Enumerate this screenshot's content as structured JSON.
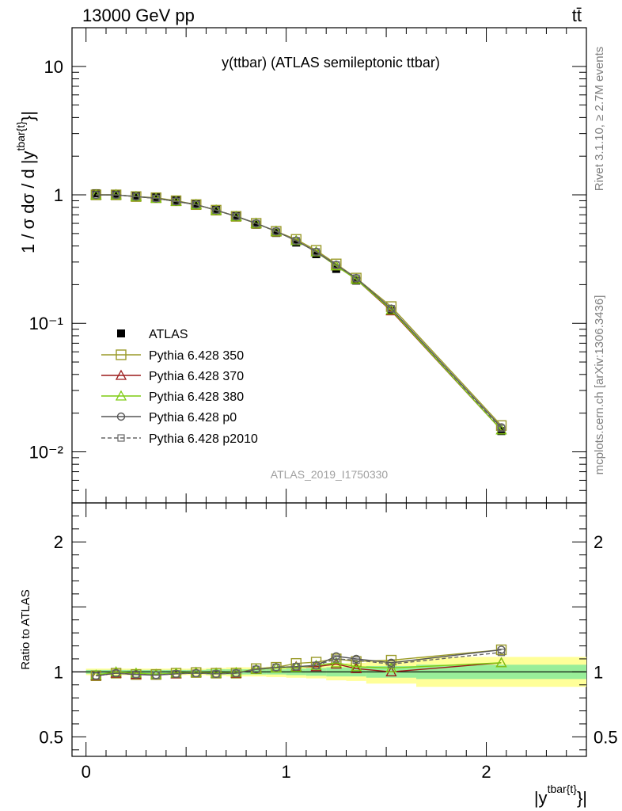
{
  "header": {
    "left": "13000 GeV pp",
    "right": "tt̄"
  },
  "side_labels": {
    "rivet": "Rivet 3.1.10, ≥ 2.7M events",
    "source": "mcplots.cern.ch [arXiv:1306.3436]"
  },
  "chart_data": [
    {
      "type": "line",
      "title": "y(ttbar) (ATLAS semileptonic ttbar)",
      "watermark": "ATLAS_2019_I1750330",
      "ylabel": "1 / σ dσ / d |y^{tbar{t}}|",
      "ylabel_main": "1 / σ dσ / d |y",
      "ylabel_sup": "tbar{t}",
      "ylabel_close": "}|",
      "yscale": "log",
      "ylim": [
        0.004,
        20
      ],
      "xlim": [
        -0.07,
        2.5
      ],
      "x": [
        0.05,
        0.15,
        0.25,
        0.35,
        0.45,
        0.55,
        0.65,
        0.75,
        0.85,
        0.95,
        1.05,
        1.15,
        1.25,
        1.35,
        1.525,
        2.075
      ],
      "x_edges": [
        0,
        0.1,
        0.2,
        0.3,
        0.4,
        0.5,
        0.6,
        0.7,
        0.8,
        0.9,
        1.0,
        1.1,
        1.2,
        1.3,
        1.4,
        1.65,
        2.5
      ],
      "y_ticks": [
        {
          "v": 10,
          "label": "10"
        },
        {
          "v": 1,
          "label": "1"
        },
        {
          "v": 0.1,
          "label": "10⁻¹"
        },
        {
          "v": 0.01,
          "label": "10⁻²"
        }
      ],
      "legend_position": "bottom-left",
      "series": [
        {
          "name": "ATLAS",
          "color": "#000000",
          "marker": "filled-square",
          "values": [
            1.03,
            1.01,
            0.99,
            0.96,
            0.905,
            0.845,
            0.765,
            0.685,
            0.585,
            0.505,
            0.425,
            0.345,
            0.265,
            0.215,
            0.125,
            0.0145
          ]
        },
        {
          "name": "Pythia 6.428 350",
          "color": "#9a9a28",
          "marker": "open-square",
          "dash": false,
          "values": [
            1.0,
            1.0,
            0.97,
            0.95,
            0.9,
            0.84,
            0.76,
            0.68,
            0.6,
            0.52,
            0.45,
            0.37,
            0.29,
            0.225,
            0.135,
            0.016
          ]
        },
        {
          "name": "Pythia 6.428 370",
          "color": "#9b1a1a",
          "marker": "open-triangle",
          "dash": false,
          "values": [
            1.0,
            1.0,
            0.97,
            0.94,
            0.89,
            0.84,
            0.76,
            0.68,
            0.6,
            0.52,
            0.44,
            0.36,
            0.28,
            0.22,
            0.125,
            0.0148
          ]
        },
        {
          "name": "Pythia 6.428 380",
          "color": "#7ecc10",
          "marker": "open-triangle",
          "dash": false,
          "values": [
            1.0,
            1.0,
            0.97,
            0.94,
            0.89,
            0.84,
            0.76,
            0.68,
            0.6,
            0.52,
            0.44,
            0.36,
            0.28,
            0.22,
            0.127,
            0.0148
          ]
        },
        {
          "name": "Pythia 6.428 p0",
          "color": "#555555",
          "marker": "open-circle",
          "dash": false,
          "values": [
            1.0,
            1.0,
            0.97,
            0.94,
            0.89,
            0.84,
            0.76,
            0.68,
            0.6,
            0.52,
            0.44,
            0.36,
            0.285,
            0.225,
            0.13,
            0.0155
          ]
        },
        {
          "name": "Pythia 6.428 p2010",
          "color": "#666666",
          "marker": "open-square-small",
          "dash": true,
          "values": [
            1.0,
            1.0,
            0.97,
            0.94,
            0.89,
            0.84,
            0.76,
            0.68,
            0.6,
            0.52,
            0.44,
            0.36,
            0.285,
            0.225,
            0.13,
            0.0152
          ]
        }
      ]
    },
    {
      "type": "line",
      "ylabel": "Ratio to ATLAS",
      "xlabel": "|y^{tbar{t}}|",
      "xlabel_main": "|y",
      "xlabel_sup": "tbar{t}",
      "xlabel_close": "}|",
      "ylim": [
        0.35,
        2.3
      ],
      "xlim": [
        -0.07,
        2.5
      ],
      "x": [
        0.05,
        0.15,
        0.25,
        0.35,
        0.45,
        0.55,
        0.65,
        0.75,
        0.85,
        0.95,
        1.05,
        1.15,
        1.25,
        1.35,
        1.525,
        2.075
      ],
      "x_edges": [
        0,
        0.1,
        0.2,
        0.3,
        0.4,
        0.5,
        0.6,
        0.7,
        0.8,
        0.9,
        1.0,
        1.1,
        1.2,
        1.3,
        1.4,
        1.65,
        2.5
      ],
      "y_ticks": [
        {
          "v": 2,
          "label": "2"
        },
        {
          "v": 1,
          "label": "1"
        },
        {
          "v": 0.5,
          "label": "0.5"
        }
      ],
      "x_ticks": [
        {
          "v": 0,
          "label": "0"
        },
        {
          "v": 1,
          "label": "1"
        },
        {
          "v": 2,
          "label": "2"
        }
      ],
      "band_stat": [
        0.015,
        0.015,
        0.015,
        0.015,
        0.015,
        0.015,
        0.02,
        0.02,
        0.02,
        0.02,
        0.025,
        0.03,
        0.035,
        0.035,
        0.045,
        0.055
      ],
      "band_total": [
        0.025,
        0.025,
        0.025,
        0.025,
        0.025,
        0.025,
        0.03,
        0.035,
        0.035,
        0.04,
        0.045,
        0.05,
        0.065,
        0.07,
        0.09,
        0.115
      ],
      "series": [
        {
          "name": "Pythia 6.428 350",
          "color": "#9a9a28",
          "marker": "open-square",
          "dash": false,
          "values": [
            0.97,
            0.99,
            0.98,
            0.98,
            0.99,
            0.995,
            0.99,
            0.99,
            1.025,
            1.035,
            1.065,
            1.075,
            1.1,
            1.08,
            1.09,
            1.17
          ]
        },
        {
          "name": "Pythia 6.428 370",
          "color": "#9b1a1a",
          "marker": "open-triangle",
          "dash": false,
          "values": [
            0.97,
            0.99,
            0.98,
            0.98,
            0.985,
            0.995,
            0.99,
            0.99,
            1.02,
            1.03,
            1.04,
            1.04,
            1.06,
            1.025,
            1.0,
            1.07
          ]
        },
        {
          "name": "Pythia 6.428 380",
          "color": "#7ecc10",
          "marker": "open-triangle",
          "dash": false,
          "values": [
            0.975,
            1.0,
            0.99,
            0.98,
            0.99,
            0.995,
            0.99,
            0.995,
            1.02,
            1.03,
            1.035,
            1.05,
            1.07,
            1.04,
            1.03,
            1.07
          ]
        },
        {
          "name": "Pythia 6.428 p0",
          "color": "#555555",
          "marker": "open-circle",
          "dash": false,
          "values": [
            0.97,
            0.99,
            0.98,
            0.975,
            0.985,
            0.99,
            0.985,
            0.99,
            1.02,
            1.035,
            1.04,
            1.05,
            1.12,
            1.1,
            1.07,
            1.17
          ]
        },
        {
          "name": "Pythia 6.428 p2010",
          "color": "#666666",
          "marker": "open-square-small",
          "dash": true,
          "values": [
            0.97,
            0.99,
            0.98,
            0.975,
            0.985,
            0.99,
            0.985,
            0.99,
            1.02,
            1.035,
            1.04,
            1.05,
            1.1,
            1.09,
            1.06,
            1.15
          ]
        }
      ]
    }
  ]
}
